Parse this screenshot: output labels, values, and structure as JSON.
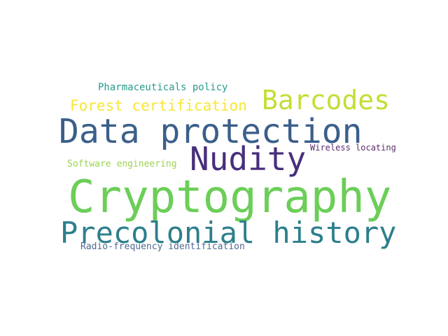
{
  "words": [
    {
      "id": "pharmaceuticals-policy",
      "text": "Pharmaceuticals policy",
      "color": "#2a9b8e"
    },
    {
      "id": "barcodes",
      "text": "Barcodes",
      "color": "#c5dd35"
    },
    {
      "id": "forest-certification",
      "text": "Forest certification",
      "color": "#f8e636"
    },
    {
      "id": "data-protection",
      "text": "Data protection",
      "color": "#3b5f8a"
    },
    {
      "id": "wireless-locating",
      "text": "Wireless locating",
      "color": "#5a2f6b"
    },
    {
      "id": "nudity",
      "text": "Nudity",
      "color": "#472e7b"
    },
    {
      "id": "software-engineering",
      "text": "Software engineering",
      "color": "#9cd451"
    },
    {
      "id": "cryptography",
      "text": "Cryptography",
      "color": "#6cce58"
    },
    {
      "id": "precolonial-history",
      "text": "Precolonial history",
      "color": "#2c7f8c"
    },
    {
      "id": "radio-frequency-identification",
      "text": "Radio-frequency identification",
      "color": "#4f6894"
    }
  ]
}
